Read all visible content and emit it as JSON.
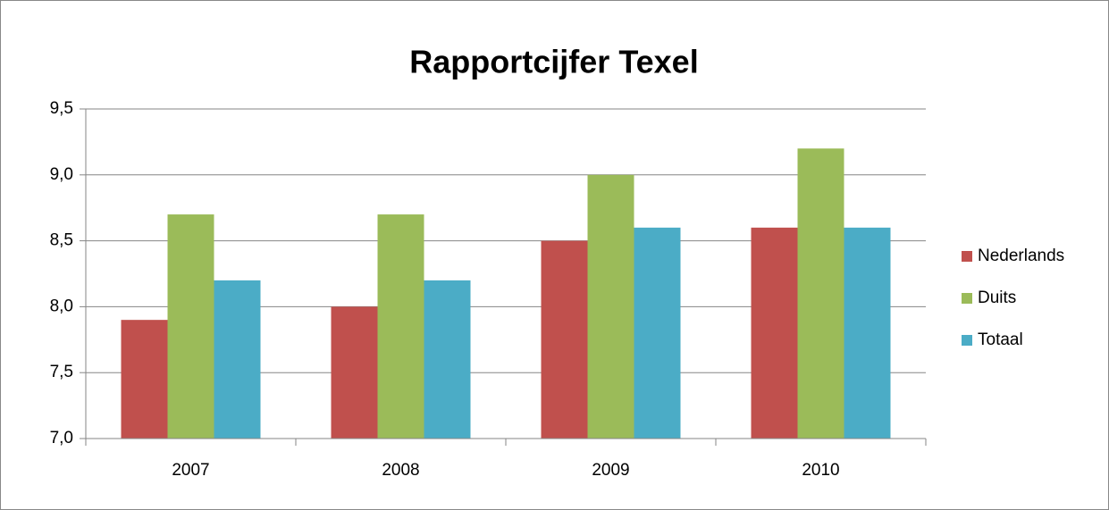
{
  "chart_data": {
    "type": "bar",
    "title": "Rapportcijfer Texel",
    "categories": [
      "2007",
      "2008",
      "2009",
      "2010"
    ],
    "series": [
      {
        "name": "Nederlands",
        "color": "#c0504d",
        "values": [
          7.9,
          8.0,
          8.5,
          8.6
        ]
      },
      {
        "name": "Duits",
        "color": "#9bbb59",
        "values": [
          8.7,
          8.7,
          9.0,
          9.2
        ]
      },
      {
        "name": "Totaal",
        "color": "#4bacc6",
        "values": [
          8.2,
          8.2,
          8.6,
          8.6
        ]
      }
    ],
    "ylim": [
      7.0,
      9.5
    ],
    "yticks": [
      {
        "value": 7.0,
        "label": "7,0"
      },
      {
        "value": 7.5,
        "label": "7,5"
      },
      {
        "value": 8.0,
        "label": "8,0"
      },
      {
        "value": 8.5,
        "label": "8,5"
      },
      {
        "value": 9.0,
        "label": "9,0"
      },
      {
        "value": 9.5,
        "label": "9,5"
      }
    ],
    "grid": true,
    "legend": "right"
  }
}
